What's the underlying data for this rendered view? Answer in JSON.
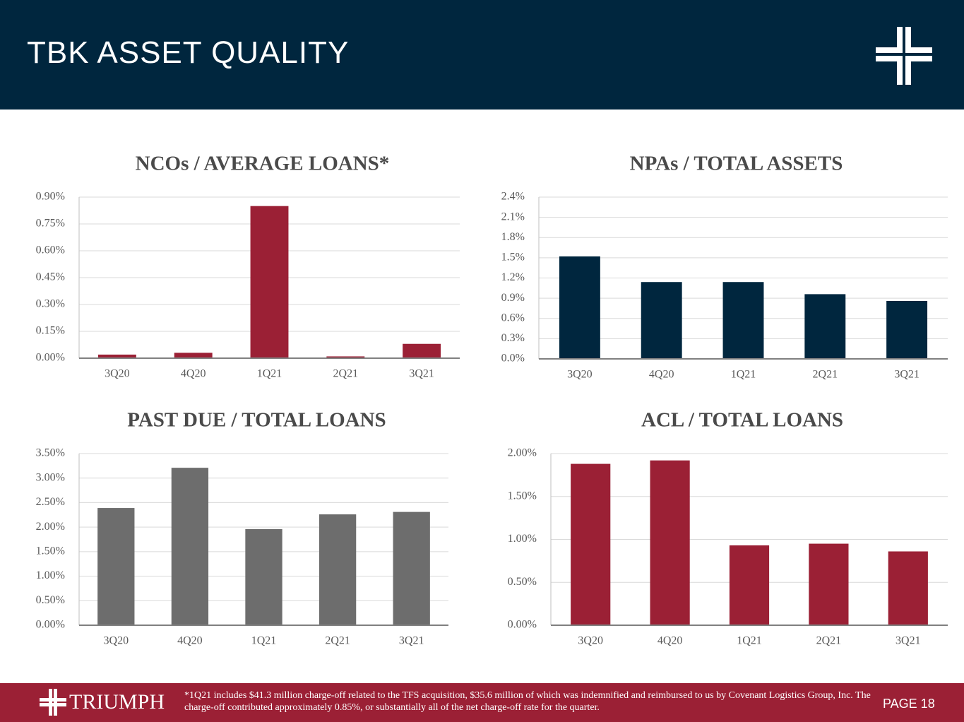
{
  "header": {
    "title": "TBK ASSET QUALITY"
  },
  "footer": {
    "brand": "TRIUMPH",
    "note": "*1Q21 includes $41.3 million charge-off related to the TFS acquisition, $35.6 million of which was indemnified and reimbursed to us by Covenant Logistics Group, Inc. The charge-off contributed approximately 0.85%, or substantially all of the  net charge-off rate for the quarter.",
    "page": "PAGE 18"
  },
  "chart_data": [
    {
      "type": "bar",
      "title": "NCOs / AVERAGE LOANS*",
      "categories": [
        "3Q20",
        "4Q20",
        "1Q21",
        "2Q21",
        "3Q21"
      ],
      "values": [
        0.02,
        0.03,
        0.85,
        0.01,
        0.08
      ],
      "color": "#9b2035",
      "ylim": [
        0,
        0.9
      ],
      "yticks": [
        {
          "value": 0,
          "label": "0.00%"
        },
        {
          "value": 0.15,
          "label": "0.15%"
        },
        {
          "value": 0.3,
          "label": "0.30%"
        },
        {
          "value": 0.45,
          "label": "0.45%"
        },
        {
          "value": 0.6,
          "label": "0.60%"
        },
        {
          "value": 0.75,
          "label": "0.75%"
        },
        {
          "value": 0.9,
          "label": "0.90%"
        }
      ],
      "grid": true
    },
    {
      "type": "bar",
      "title": "NPAs / TOTAL ASSETS",
      "categories": [
        "3Q20",
        "4Q20",
        "1Q21",
        "2Q21",
        "3Q21"
      ],
      "values": [
        1.52,
        1.14,
        1.14,
        0.96,
        0.86
      ],
      "color": "#00263e",
      "ylim": [
        0,
        2.4
      ],
      "yticks": [
        {
          "value": 0,
          "label": "0.0%"
        },
        {
          "value": 0.3,
          "label": "0.3%"
        },
        {
          "value": 0.6,
          "label": "0.6%"
        },
        {
          "value": 0.9,
          "label": "0.9%"
        },
        {
          "value": 1.2,
          "label": "1.2%"
        },
        {
          "value": 1.5,
          "label": "1.5%"
        },
        {
          "value": 1.8,
          "label": "1.8%"
        },
        {
          "value": 2.1,
          "label": "2.1%"
        },
        {
          "value": 2.4,
          "label": "2.4%"
        }
      ],
      "grid": true
    },
    {
      "type": "bar",
      "title": "PAST DUE / TOTAL LOANS",
      "categories": [
        "3Q20",
        "4Q20",
        "1Q21",
        "2Q21",
        "3Q21"
      ],
      "values": [
        2.39,
        3.21,
        1.96,
        2.26,
        2.31
      ],
      "color": "#6d6d6d",
      "ylim": [
        0,
        3.5
      ],
      "yticks": [
        {
          "value": 0,
          "label": "0.00%"
        },
        {
          "value": 0.5,
          "label": "0.50%"
        },
        {
          "value": 1,
          "label": "1.00%"
        },
        {
          "value": 1.5,
          "label": "1.50%"
        },
        {
          "value": 2,
          "label": "2.00%"
        },
        {
          "value": 2.5,
          "label": "2.50%"
        },
        {
          "value": 3,
          "label": "3.00%"
        },
        {
          "value": 3.5,
          "label": "3.50%"
        }
      ],
      "grid": true
    },
    {
      "type": "bar",
      "title": "ACL / TOTAL LOANS",
      "categories": [
        "3Q20",
        "4Q20",
        "1Q21",
        "2Q21",
        "3Q21"
      ],
      "values": [
        1.88,
        1.92,
        0.93,
        0.95,
        0.86
      ],
      "color": "#9b2035",
      "ylim": [
        0,
        2
      ],
      "yticks": [
        {
          "value": 0,
          "label": "0.00%"
        },
        {
          "value": 0.5,
          "label": "0.50%"
        },
        {
          "value": 1,
          "label": "1.00%"
        },
        {
          "value": 1.5,
          "label": "1.50%"
        },
        {
          "value": 2,
          "label": "2.00%"
        }
      ],
      "grid": true
    }
  ]
}
